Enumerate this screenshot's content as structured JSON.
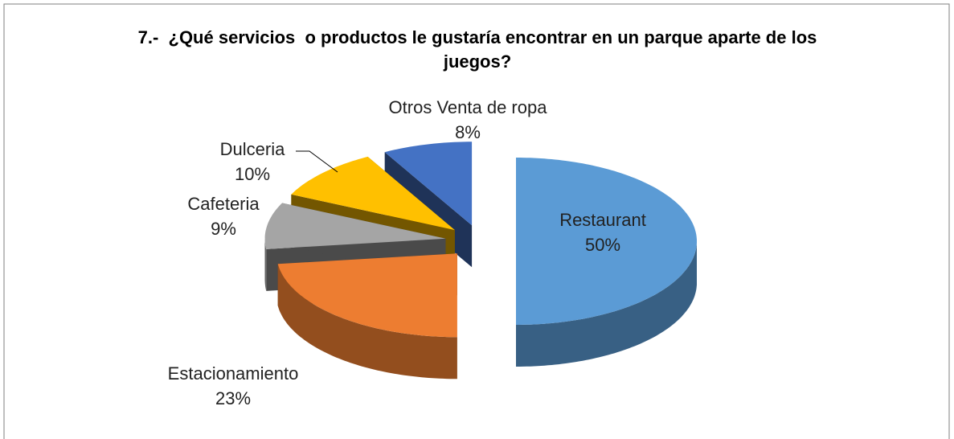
{
  "chart_data": {
    "type": "pie",
    "title": "7.-  ¿Qué servicios  o productos le gustaría encontrar en un parque aparte de los juegos?",
    "categories": [
      "Restaurant",
      "Estacionamiento",
      "Cafeteria",
      "Dulceria",
      "Otros Venta de ropa"
    ],
    "values": [
      50,
      23,
      9,
      10,
      8
    ],
    "value_labels": [
      "50%",
      "23%",
      "9%",
      "10%",
      "8%"
    ],
    "colors": [
      "#5b9bd5",
      "#ed7d31",
      "#a5a5a5",
      "#ffc000",
      "#4472c4"
    ]
  }
}
